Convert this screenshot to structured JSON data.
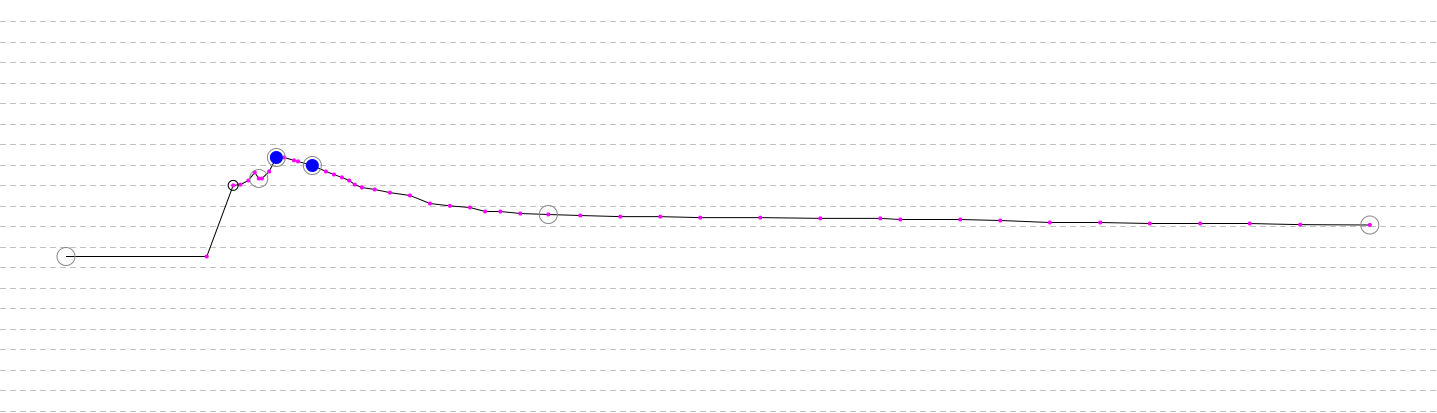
{
  "chart_data": {
    "type": "line",
    "title": "",
    "xlabel": "",
    "ylabel": "",
    "xlim": [
      -8.25,
      171.4
    ],
    "ylim": [
      0,
      19
    ],
    "grid": {
      "horizontal": true,
      "vertical": false,
      "style": "dashed",
      "step": 1
    },
    "colors": {
      "line": "#000000",
      "points": "#ff00ff",
      "grid": "#c0c0c0",
      "highlight": "#0000ff",
      "marker_ring": "#888888"
    },
    "series": [
      {
        "points": [
          [
            0,
            7.51
          ],
          [
            17.6,
            7.51
          ],
          [
            20.9,
            10.98
          ],
          [
            21.8,
            11.02
          ],
          [
            22.8,
            11.22
          ],
          [
            23.6,
            11.61
          ],
          [
            24.1,
            11.32
          ],
          [
            24.5,
            11.32
          ],
          [
            25.4,
            11.66
          ],
          [
            26.3,
            12.34
          ],
          [
            27.3,
            12.34
          ],
          [
            28.5,
            12.2
          ],
          [
            29.0,
            12.15
          ],
          [
            30.8,
            11.95
          ],
          [
            32.5,
            11.66
          ],
          [
            33.5,
            11.51
          ],
          [
            34.5,
            11.37
          ],
          [
            35.4,
            11.22
          ],
          [
            36.1,
            11.02
          ],
          [
            37.0,
            10.88
          ],
          [
            38.6,
            10.78
          ],
          [
            40.5,
            10.63
          ],
          [
            43.0,
            10.49
          ],
          [
            45.5,
            10.1
          ],
          [
            48.0,
            9.98
          ],
          [
            50.5,
            9.9
          ],
          [
            52.4,
            9.71
          ],
          [
            54.3,
            9.71
          ],
          [
            56.8,
            9.61
          ],
          [
            60.3,
            9.56
          ],
          [
            64.3,
            9.51
          ],
          [
            69.3,
            9.46
          ],
          [
            74.3,
            9.46
          ],
          [
            79.3,
            9.41
          ],
          [
            86.8,
            9.41
          ],
          [
            94.3,
            9.37
          ],
          [
            101.8,
            9.37
          ],
          [
            104.3,
            9.32
          ],
          [
            111.8,
            9.32
          ],
          [
            116.8,
            9.27
          ],
          [
            123.0,
            9.17
          ],
          [
            129.3,
            9.17
          ],
          [
            135.5,
            9.12
          ],
          [
            141.8,
            9.12
          ],
          [
            148.0,
            9.12
          ],
          [
            154.3,
            9.07
          ],
          [
            163.0,
            9.05
          ]
        ]
      }
    ],
    "markers": {
      "open_circles": [
        0,
        6,
        29,
        46
      ],
      "small_circles": [
        2
      ],
      "highlighted_points": [
        9,
        13
      ]
    }
  }
}
